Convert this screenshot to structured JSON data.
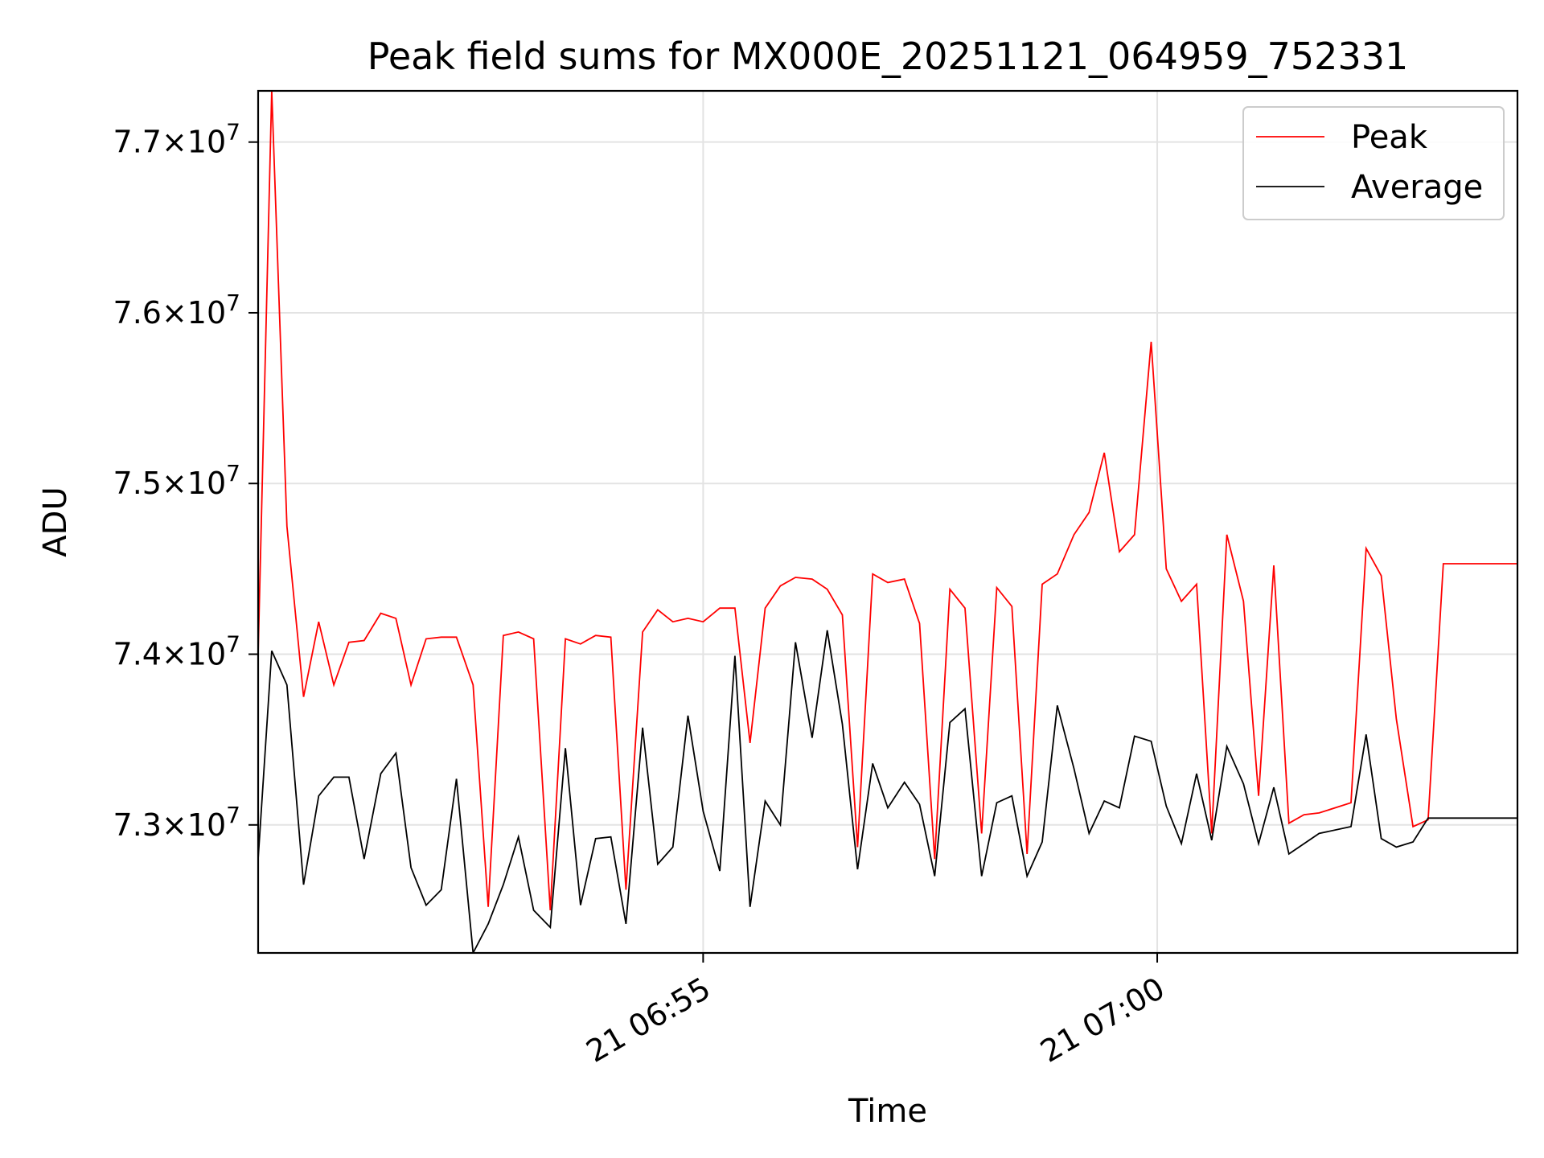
{
  "chart_data": {
    "type": "line",
    "title": "Peak field sums for MX000E_20251121_064959_752331",
    "xlabel": "Time",
    "ylabel": "ADU",
    "xlim": [
      "2025-11-21 06:50:06",
      "2025-11-21 07:03:58"
    ],
    "ylim": [
      72250000,
      77300000
    ],
    "grid": true,
    "legend_position": "top-right",
    "x_ticks": [
      {
        "value": "2025-11-21 06:55:00",
        "label": "21 06:55"
      },
      {
        "value": "2025-11-21 07:00:00",
        "label": "21 07:00"
      }
    ],
    "y_ticks": [
      {
        "value": 73000000,
        "mantissa": "7.3",
        "exponent": "7"
      },
      {
        "value": 74000000,
        "mantissa": "7.4",
        "exponent": "7"
      },
      {
        "value": 75000000,
        "mantissa": "7.5",
        "exponent": "7"
      },
      {
        "value": 76000000,
        "mantissa": "7.6",
        "exponent": "7"
      },
      {
        "value": 77000000,
        "mantissa": "7.7",
        "exponent": "7"
      }
    ],
    "x": [
      "2025-11-21 06:50:06",
      "2025-11-21 06:50:15",
      "2025-11-21 06:50:25",
      "2025-11-21 06:50:36",
      "2025-11-21 06:50:46",
      "2025-11-21 06:50:56",
      "2025-11-21 06:51:06",
      "2025-11-21 06:51:16",
      "2025-11-21 06:51:27",
      "2025-11-21 06:51:37",
      "2025-11-21 06:51:47",
      "2025-11-21 06:51:57",
      "2025-11-21 06:52:07",
      "2025-11-21 06:52:17",
      "2025-11-21 06:52:28",
      "2025-11-21 06:52:38",
      "2025-11-21 06:52:48",
      "2025-11-21 06:52:58",
      "2025-11-21 06:53:08",
      "2025-11-21 06:53:19",
      "2025-11-21 06:53:29",
      "2025-11-21 06:53:39",
      "2025-11-21 06:53:49",
      "2025-11-21 06:53:59",
      "2025-11-21 06:54:09",
      "2025-11-21 06:54:20",
      "2025-11-21 06:54:30",
      "2025-11-21 06:54:40",
      "2025-11-21 06:54:50",
      "2025-11-21 06:55:00",
      "2025-11-21 06:55:11",
      "2025-11-21 06:55:21",
      "2025-11-21 06:55:31",
      "2025-11-21 06:55:41",
      "2025-11-21 06:55:51",
      "2025-11-21 06:56:01",
      "2025-11-21 06:56:12",
      "2025-11-21 06:56:22",
      "2025-11-21 06:56:32",
      "2025-11-21 06:56:42",
      "2025-11-21 06:56:52",
      "2025-11-21 06:57:02",
      "2025-11-21 06:57:13",
      "2025-11-21 06:57:23",
      "2025-11-21 06:57:33",
      "2025-11-21 06:57:43",
      "2025-11-21 06:57:53",
      "2025-11-21 06:58:04",
      "2025-11-21 06:58:14",
      "2025-11-21 06:58:24",
      "2025-11-21 06:58:34",
      "2025-11-21 06:58:44",
      "2025-11-21 06:58:54",
      "2025-11-21 06:59:05",
      "2025-11-21 06:59:15",
      "2025-11-21 06:59:25",
      "2025-11-21 06:59:35",
      "2025-11-21 06:59:45",
      "2025-11-21 06:59:56",
      "2025-11-21 07:00:06",
      "2025-11-21 07:00:16",
      "2025-11-21 07:00:26",
      "2025-11-21 07:00:36",
      "2025-11-21 07:00:46",
      "2025-11-21 07:00:57",
      "2025-11-21 07:01:07",
      "2025-11-21 07:01:17",
      "2025-11-21 07:01:27",
      "2025-11-21 07:01:37",
      "2025-11-21 07:01:47",
      "2025-11-21 07:02:08",
      "2025-11-21 07:02:18",
      "2025-11-21 07:02:28",
      "2025-11-21 07:02:38",
      "2025-11-21 07:02:49",
      "2025-11-21 07:02:59",
      "2025-11-21 07:03:09",
      "2025-11-21 07:03:19",
      "2025-11-21 07:03:29",
      "2025-11-21 07:03:58"
    ],
    "series": [
      {
        "name": "Peak",
        "color": "#ff0000",
        "values": [
          74000000,
          77300000,
          74750000,
          73750000,
          74190000,
          73820000,
          74070000,
          74080000,
          74240000,
          74210000,
          73820000,
          74090000,
          74100000,
          74100000,
          73820000,
          72520000,
          74110000,
          74130000,
          74090000,
          72500000,
          74090000,
          74060000,
          74110000,
          74100000,
          72620000,
          74130000,
          74260000,
          74190000,
          74210000,
          74190000,
          74270000,
          74270000,
          73480000,
          74270000,
          74400000,
          74450000,
          74440000,
          74380000,
          74230000,
          72870000,
          74470000,
          74420000,
          74440000,
          74180000,
          72800000,
          74380000,
          74270000,
          72950000,
          74390000,
          74280000,
          72830000,
          74410000,
          74470000,
          74700000,
          74830000,
          75180000,
          74600000,
          74700000,
          75830000,
          74500000,
          74310000,
          74410000,
          72950000,
          74700000,
          74310000,
          73170000,
          74520000,
          73010000,
          73060000,
          73070000,
          73130000,
          74620000,
          74460000,
          73620000,
          72990000,
          73030000,
          74530000,
          74530000,
          74530000,
          74530000
        ]
      },
      {
        "name": "Average",
        "color": "#000000",
        "values": [
          72800000,
          74020000,
          73820000,
          72650000,
          73170000,
          73280000,
          73280000,
          72800000,
          73300000,
          73420000,
          72750000,
          72530000,
          72620000,
          73270000,
          72250000,
          72420000,
          72650000,
          72930000,
          72500000,
          72400000,
          73450000,
          72530000,
          72920000,
          72930000,
          72420000,
          73570000,
          72770000,
          72870000,
          73640000,
          73080000,
          72730000,
          73990000,
          72520000,
          73140000,
          73000000,
          74070000,
          73510000,
          74140000,
          73590000,
          72740000,
          73360000,
          73100000,
          73250000,
          73120000,
          72700000,
          73600000,
          73680000,
          72700000,
          73130000,
          73170000,
          72700000,
          72900000,
          73700000,
          73330000,
          72950000,
          73140000,
          73100000,
          73520000,
          73490000,
          73110000,
          72890000,
          73300000,
          72910000,
          73460000,
          73240000,
          72890000,
          73220000,
          72830000,
          72890000,
          72950000,
          72990000,
          73530000,
          72920000,
          72870000,
          72900000,
          73040000,
          73040000,
          73040000,
          73040000,
          73040000
        ]
      }
    ]
  }
}
